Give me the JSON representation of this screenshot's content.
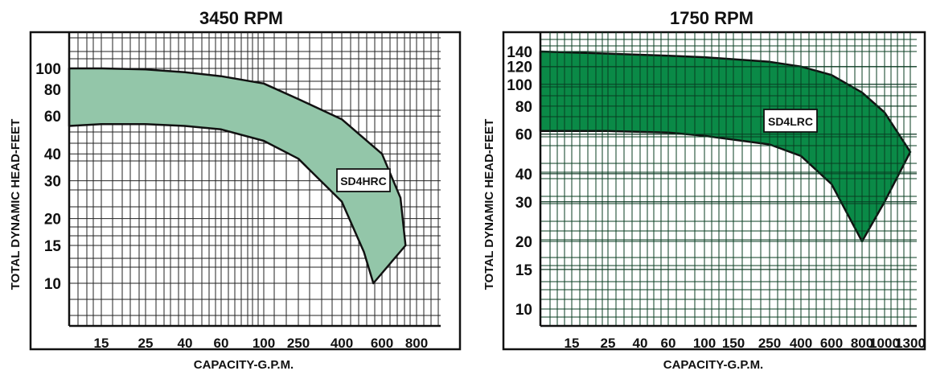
{
  "chart_data": [
    {
      "type": "area",
      "title": "3450 RPM",
      "xlabel": "CAPACITY-G.P.M.",
      "ylabel": "TOTAL DYNAMIC HEAD-FEET",
      "x_tick_labels": [
        "15",
        "25",
        "40",
        "60",
        "100",
        "250",
        "400",
        "600",
        "800"
      ],
      "y_tick_labels": [
        {
          "label": "10",
          "value": 10
        },
        {
          "label": "15",
          "value": 15
        },
        {
          "label": "20",
          "value": 20
        },
        {
          "label": "30",
          "value": 30
        },
        {
          "label": "40",
          "value": 40
        },
        {
          "label": "60",
          "value": 60
        },
        {
          "label": "80",
          "value": 80
        },
        {
          "label": "100",
          "value": 100
        }
      ],
      "y_scale": "log",
      "ylim": [
        7,
        110
      ],
      "grid": true,
      "fill_color": "#93c6a9",
      "series": [
        {
          "name": "SD4HRC",
          "upper": [
            [
              5,
              100
            ],
            [
              15,
              100
            ],
            [
              25,
              99
            ],
            [
              40,
              96
            ],
            [
              60,
              92
            ],
            [
              100,
              85
            ],
            [
              250,
              72
            ],
            [
              400,
              58
            ],
            [
              600,
              40
            ],
            [
              700,
              25
            ],
            [
              730,
              15
            ]
          ],
          "lower": [
            [
              5,
              54
            ],
            [
              15,
              55
            ],
            [
              25,
              55
            ],
            [
              40,
              54
            ],
            [
              60,
              52
            ],
            [
              100,
              46
            ],
            [
              250,
              38
            ],
            [
              400,
              24
            ],
            [
              500,
              14
            ],
            [
              550,
              10
            ]
          ]
        }
      ]
    },
    {
      "type": "area",
      "title": "1750 RPM",
      "xlabel": "CAPACITY-G.P.M.",
      "ylabel": "TOTAL DYNAMIC HEAD-FEET",
      "x_tick_labels": [
        "15",
        "25",
        "40",
        "60",
        "100",
        "150",
        "250",
        "400",
        "600",
        "800",
        "1000",
        "1300"
      ],
      "y_tick_labels": [
        {
          "label": "10",
          "value": 10
        },
        {
          "label": "15",
          "value": 15
        },
        {
          "label": "20",
          "value": 20
        },
        {
          "label": "30",
          "value": 30
        },
        {
          "label": "40",
          "value": 40
        },
        {
          "label": "60",
          "value": 60
        },
        {
          "label": "80",
          "value": 80
        },
        {
          "label": "100",
          "value": 100
        },
        {
          "label": "120",
          "value": 120
        },
        {
          "label": "140",
          "value": 140
        }
      ],
      "y_scale": "log",
      "ylim": [
        8,
        155
      ],
      "grid": true,
      "fill_color": "#0a8a47",
      "series": [
        {
          "name": "SD4LRC",
          "upper": [
            [
              5,
              140
            ],
            [
              25,
              137
            ],
            [
              60,
              134
            ],
            [
              100,
              132
            ],
            [
              250,
              126
            ],
            [
              400,
              120
            ],
            [
              600,
              110
            ],
            [
              800,
              92
            ],
            [
              1000,
              75
            ],
            [
              1300,
              50
            ]
          ],
          "lower": [
            [
              5,
              62
            ],
            [
              25,
              62
            ],
            [
              60,
              61
            ],
            [
              100,
              59
            ],
            [
              250,
              54
            ],
            [
              400,
              48
            ],
            [
              600,
              36
            ],
            [
              800,
              20
            ],
            [
              1000,
              30
            ],
            [
              1300,
              50
            ]
          ]
        }
      ]
    }
  ]
}
